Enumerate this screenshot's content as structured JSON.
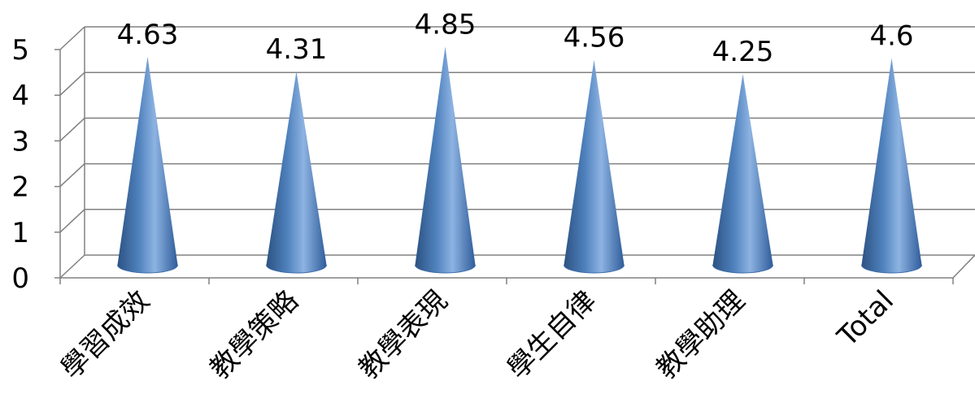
{
  "chart_data": {
    "type": "bar",
    "style": "3d-cone",
    "categories": [
      "學習成效",
      "教學策略",
      "教學表現",
      "學生自律",
      "教學助理",
      "Total"
    ],
    "values": [
      4.63,
      4.31,
      4.85,
      4.56,
      4.25,
      4.6
    ],
    "value_labels": [
      "4.63",
      "4.31",
      "4.85",
      "4.56",
      "4.25",
      "4.6"
    ],
    "ylim": [
      0,
      5
    ],
    "yticks": [
      "0",
      "1",
      "2",
      "3",
      "4",
      "5"
    ],
    "grid": true,
    "legend": "none",
    "colors": {
      "cone": "#4F81BD",
      "cone_light": "#8DB3E2",
      "cone_dark": "#2C5282",
      "grid": "#808080"
    }
  }
}
